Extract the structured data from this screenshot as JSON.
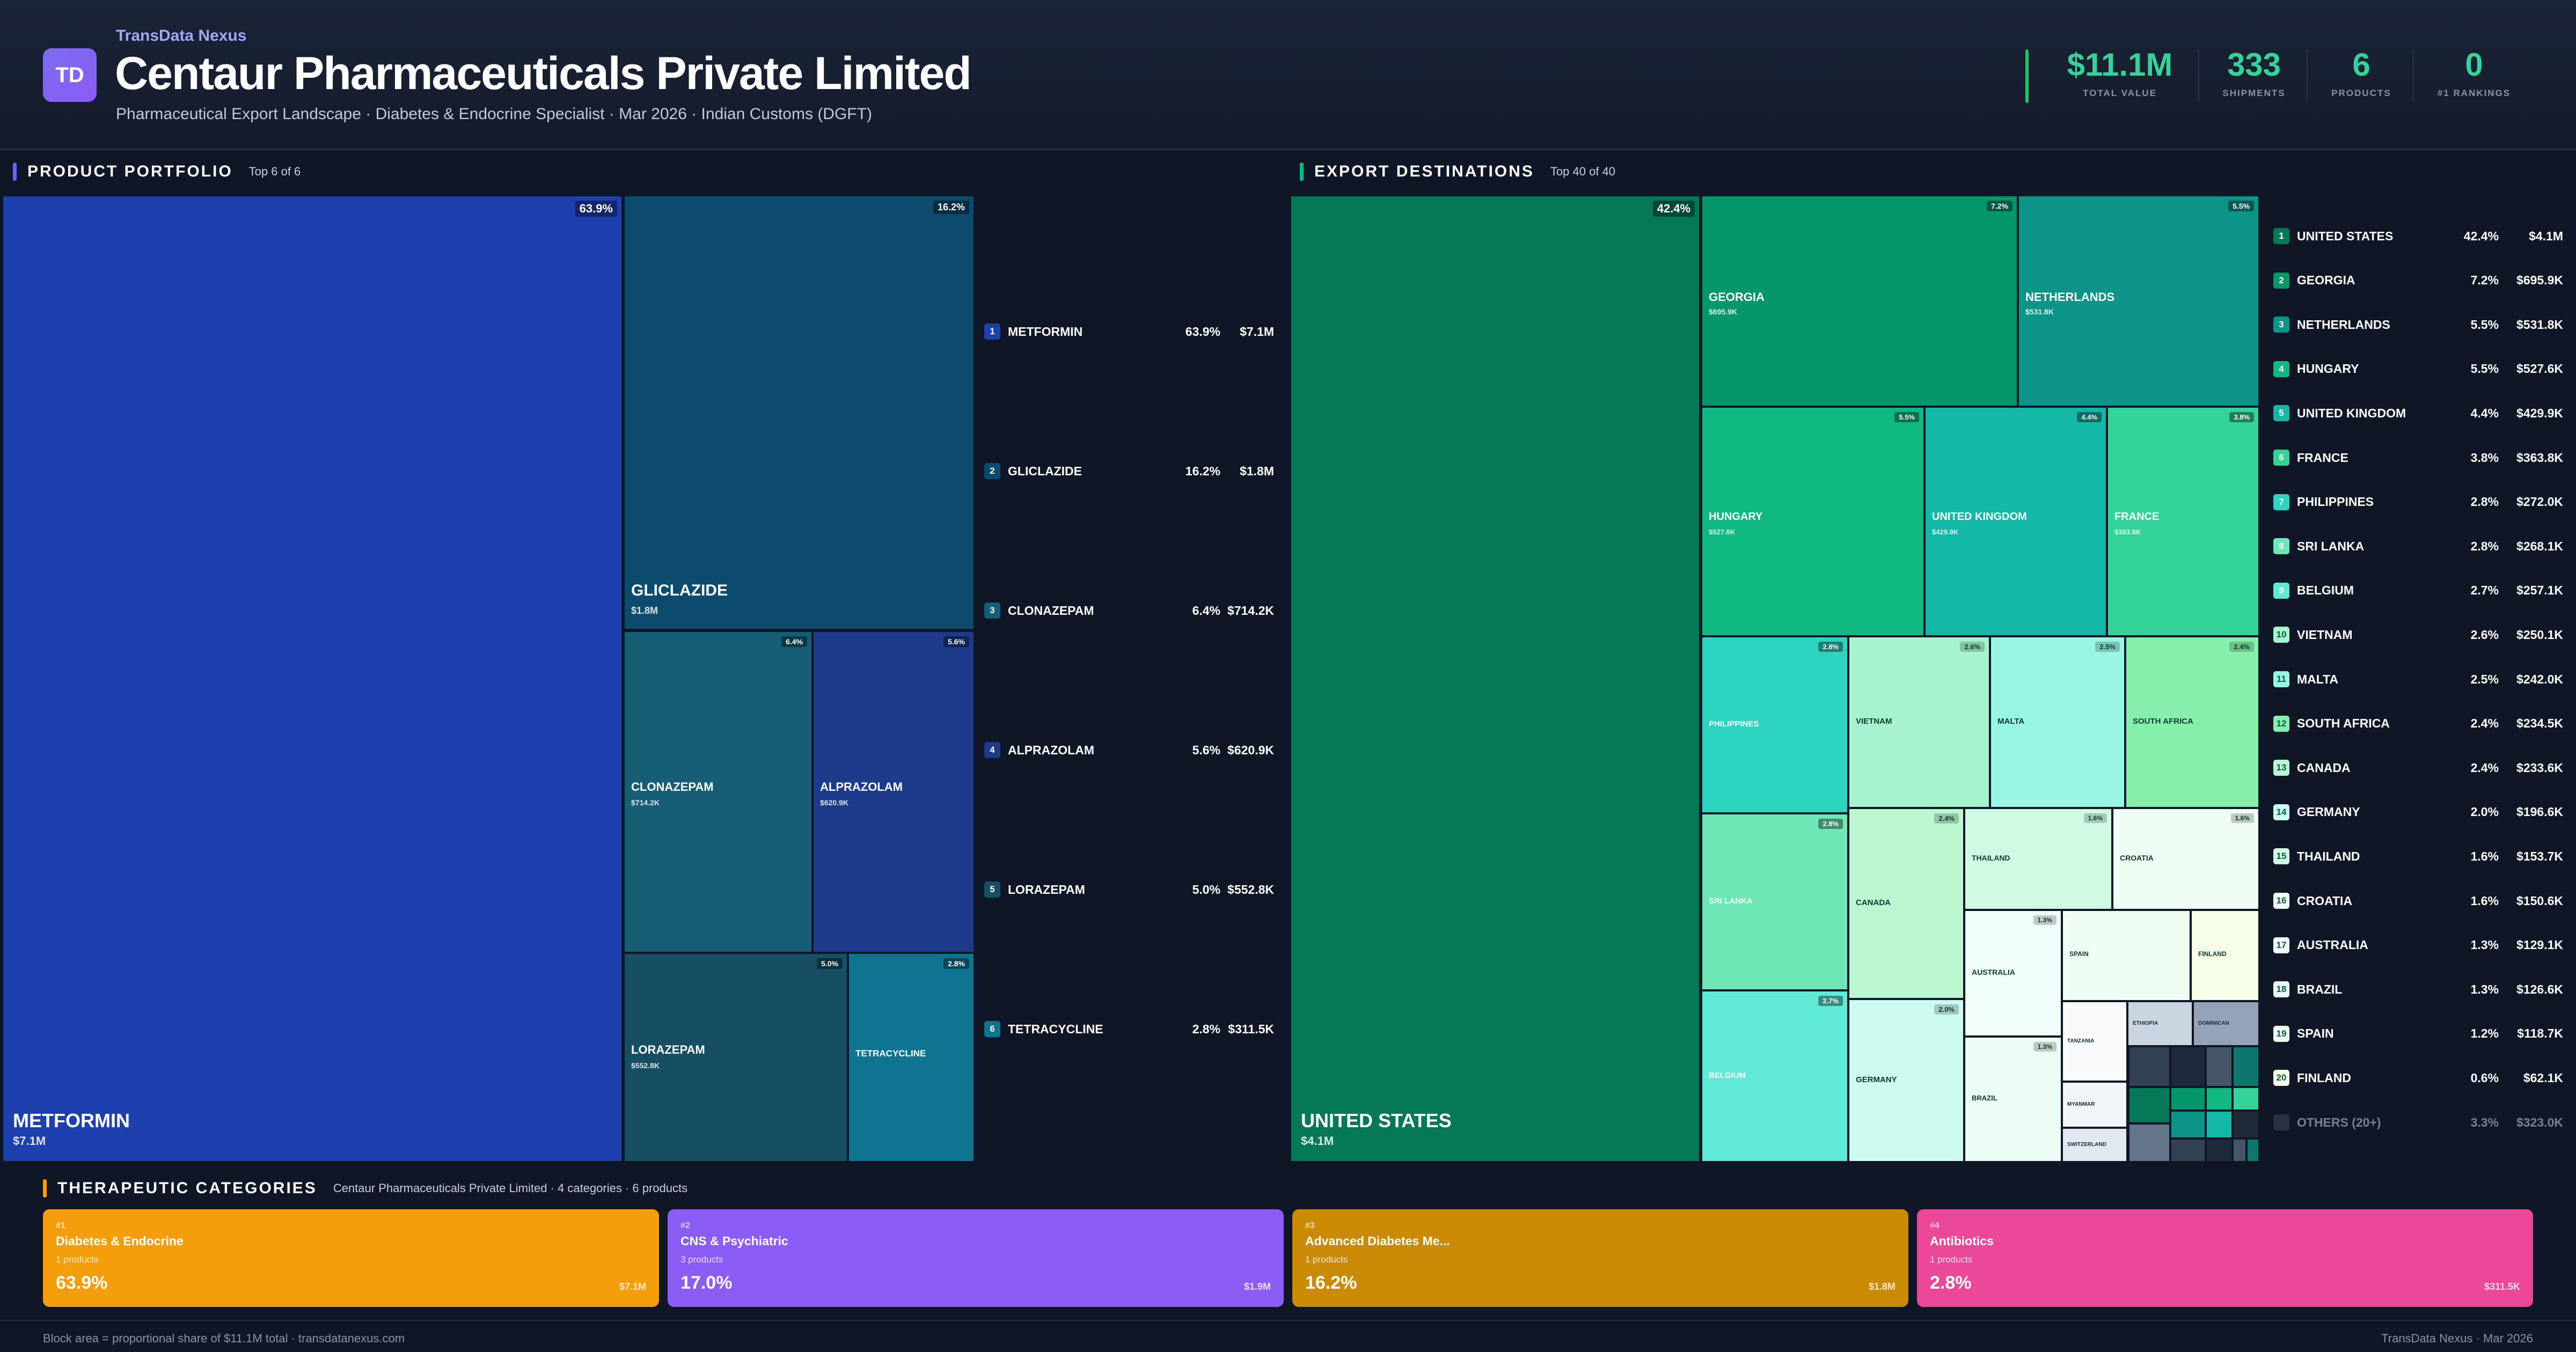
{
  "header": {
    "logo": "TD",
    "brand": "TransData Nexus",
    "title": "Centaur Pharmaceuticals Private Limited",
    "subtitle": "Pharmaceutical Export Landscape · Diabetes & Endocrine Specialist · Mar 2026 · Indian Customs (DGFT)",
    "accent_color": "#34d399",
    "stats": [
      {
        "value": "$11.1M",
        "label": "TOTAL VALUE"
      },
      {
        "value": "333",
        "label": "SHIPMENTS"
      },
      {
        "value": "6",
        "label": "PRODUCTS"
      },
      {
        "value": "0",
        "label": "#1 RANKINGS"
      }
    ]
  },
  "products": {
    "title": "PRODUCT PORTFOLIO",
    "subtitle": "Top 6 of 6",
    "accent": "#6366f1",
    "items": [
      {
        "rank": "1",
        "name": "METFORMIN",
        "pct": "63.9%",
        "value": "$7.1M",
        "color": "#1e40af"
      },
      {
        "rank": "2",
        "name": "GLICLAZIDE",
        "pct": "16.2%",
        "value": "$1.8M",
        "color": "#0c4a6e"
      },
      {
        "rank": "3",
        "name": "CLONAZEPAM",
        "pct": "6.4%",
        "value": "$714.2K",
        "color": "#155e75"
      },
      {
        "rank": "4",
        "name": "ALPRAZOLAM",
        "pct": "5.6%",
        "value": "$620.9K",
        "color": "#1e3a8a"
      },
      {
        "rank": "5",
        "name": "LORAZEPAM",
        "pct": "5.0%",
        "value": "$552.8K",
        "color": "#164e63"
      },
      {
        "rank": "6",
        "name": "TETRACYCLINE",
        "pct": "2.8%",
        "value": "$311.5K",
        "color": "#0e7490"
      }
    ]
  },
  "destinations": {
    "title": "EXPORT DESTINATIONS",
    "subtitle": "Top 40 of 40",
    "accent": "#10b981",
    "items": [
      {
        "rank": "1",
        "name": "UNITED STATES",
        "pct": "42.4%",
        "value": "$4.1M",
        "color": "#047857"
      },
      {
        "rank": "2",
        "name": "GEORGIA",
        "pct": "7.2%",
        "value": "$695.9K",
        "color": "#059669"
      },
      {
        "rank": "3",
        "name": "NETHERLANDS",
        "pct": "5.5%",
        "value": "$531.8K",
        "color": "#0d9488"
      },
      {
        "rank": "4",
        "name": "HUNGARY",
        "pct": "5.5%",
        "value": "$527.6K",
        "color": "#10b981"
      },
      {
        "rank": "5",
        "name": "UNITED KINGDOM",
        "pct": "4.4%",
        "value": "$429.9K",
        "color": "#14b8a6"
      },
      {
        "rank": "6",
        "name": "FRANCE",
        "pct": "3.8%",
        "value": "$363.8K",
        "color": "#34d399"
      },
      {
        "rank": "7",
        "name": "PHILIPPINES",
        "pct": "2.8%",
        "value": "$272.0K",
        "color": "#2dd4bf"
      },
      {
        "rank": "8",
        "name": "SRI LANKA",
        "pct": "2.8%",
        "value": "$268.1K",
        "color": "#6ee7b7"
      },
      {
        "rank": "9",
        "name": "BELGIUM",
        "pct": "2.7%",
        "value": "$257.1K",
        "color": "#5eead4"
      },
      {
        "rank": "10",
        "name": "VIETNAM",
        "pct": "2.6%",
        "value": "$250.1K",
        "color": "#a7f3d0"
      },
      {
        "rank": "11",
        "name": "MALTA",
        "pct": "2.5%",
        "value": "$242.0K",
        "color": "#99f6e4"
      },
      {
        "rank": "12",
        "name": "SOUTH AFRICA",
        "pct": "2.4%",
        "value": "$234.5K",
        "color": "#86efac"
      },
      {
        "rank": "13",
        "name": "CANADA",
        "pct": "2.4%",
        "value": "$233.6K",
        "color": "#bbf7d0"
      },
      {
        "rank": "14",
        "name": "GERMANY",
        "pct": "2.0%",
        "value": "$196.6K",
        "color": "#ccfbf1"
      },
      {
        "rank": "15",
        "name": "THAILAND",
        "pct": "1.6%",
        "value": "$153.7K",
        "color": "#d1fae5"
      },
      {
        "rank": "16",
        "name": "CROATIA",
        "pct": "1.6%",
        "value": "$150.6K",
        "color": "#f0fdf4"
      },
      {
        "rank": "17",
        "name": "AUSTRALIA",
        "pct": "1.3%",
        "value": "$129.1K",
        "color": "#f0fdfa"
      },
      {
        "rank": "18",
        "name": "BRAZIL",
        "pct": "1.3%",
        "value": "$126.6K",
        "color": "#ecfdf5"
      },
      {
        "rank": "19",
        "name": "SPAIN",
        "pct": "1.2%",
        "value": "$118.7K",
        "color": "#f0fdf4"
      },
      {
        "rank": "20",
        "name": "FINLAND",
        "pct": "0.6%",
        "value": "$62.1K",
        "color": "#f7fee7"
      }
    ],
    "others": {
      "name": "OTHERS (20+)",
      "pct": "3.3%",
      "value": "$323.0K",
      "color": "#4b5563"
    },
    "small_labels": [
      "TANZANIA",
      "ETHIOPIA",
      "DOMINICAN",
      "MYANMAR",
      "SWITZERLAND"
    ]
  },
  "categories": {
    "title": "THERAPEUTIC CATEGORIES",
    "subtitle": "Centaur Pharmaceuticals Private Limited · 4 categories · 6 products",
    "items": [
      {
        "rank": "#1",
        "name": "Diabetes & Endocrine",
        "products": "1 products",
        "pct": "63.9%",
        "value": "$7.1M",
        "color": "#f59e0b"
      },
      {
        "rank": "#2",
        "name": "CNS & Psychiatric",
        "products": "3 products",
        "pct": "17.0%",
        "value": "$1.9M",
        "color": "#8b5cf6"
      },
      {
        "rank": "#3",
        "name": "Advanced Diabetes Me...",
        "products": "1 products",
        "pct": "16.2%",
        "value": "$1.8M",
        "color": "#ca8a04"
      },
      {
        "rank": "#4",
        "name": "Antibiotics",
        "products": "1 products",
        "pct": "2.8%",
        "value": "$311.5K",
        "color": "#ec4899"
      }
    ]
  },
  "footer": {
    "left": "Block area = proportional share of $11.1M total · transdatanexus.com",
    "right": "TransData Nexus · Mar 2026"
  }
}
